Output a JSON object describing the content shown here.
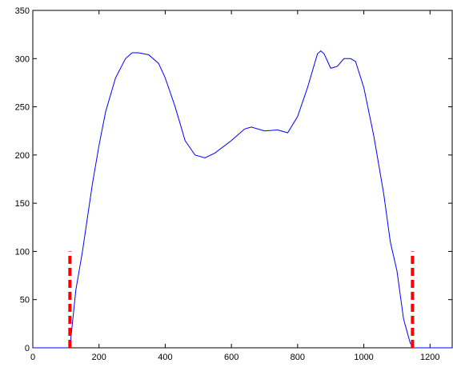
{
  "chart_data": {
    "type": "line",
    "xlim": [
      0,
      1267
    ],
    "ylim": [
      0,
      350
    ],
    "xticks": [
      0,
      200,
      400,
      600,
      800,
      1000,
      1200
    ],
    "yticks": [
      0,
      50,
      100,
      150,
      200,
      250,
      300,
      350
    ],
    "series": [
      {
        "color": "#0000ff",
        "dashed": false,
        "x": [
          0,
          110,
          115,
          130,
          150,
          180,
          200,
          220,
          250,
          280,
          300,
          320,
          350,
          380,
          400,
          430,
          460,
          490,
          520,
          550,
          600,
          640,
          660,
          700,
          740,
          770,
          800,
          830,
          860,
          870,
          880,
          900,
          920,
          940,
          960,
          975,
          1000,
          1030,
          1060,
          1080,
          1100,
          1120,
          1140,
          1150,
          1267
        ],
        "values": [
          0,
          0,
          10,
          60,
          100,
          170,
          210,
          245,
          280,
          300,
          306,
          306,
          304,
          295,
          280,
          250,
          215,
          200,
          197,
          202,
          215,
          227,
          229,
          225,
          226,
          223,
          240,
          270,
          305,
          308,
          305,
          290,
          292,
          300,
          300,
          297,
          270,
          220,
          160,
          110,
          80,
          30,
          5,
          0,
          0
        ]
      },
      {
        "color": "#ff0000",
        "dashed": true,
        "x": [
          112,
          112
        ],
        "values": [
          0,
          100
        ]
      },
      {
        "color": "#ff0000",
        "dashed": true,
        "x": [
          1147,
          1147
        ],
        "values": [
          0,
          100
        ]
      }
    ]
  }
}
